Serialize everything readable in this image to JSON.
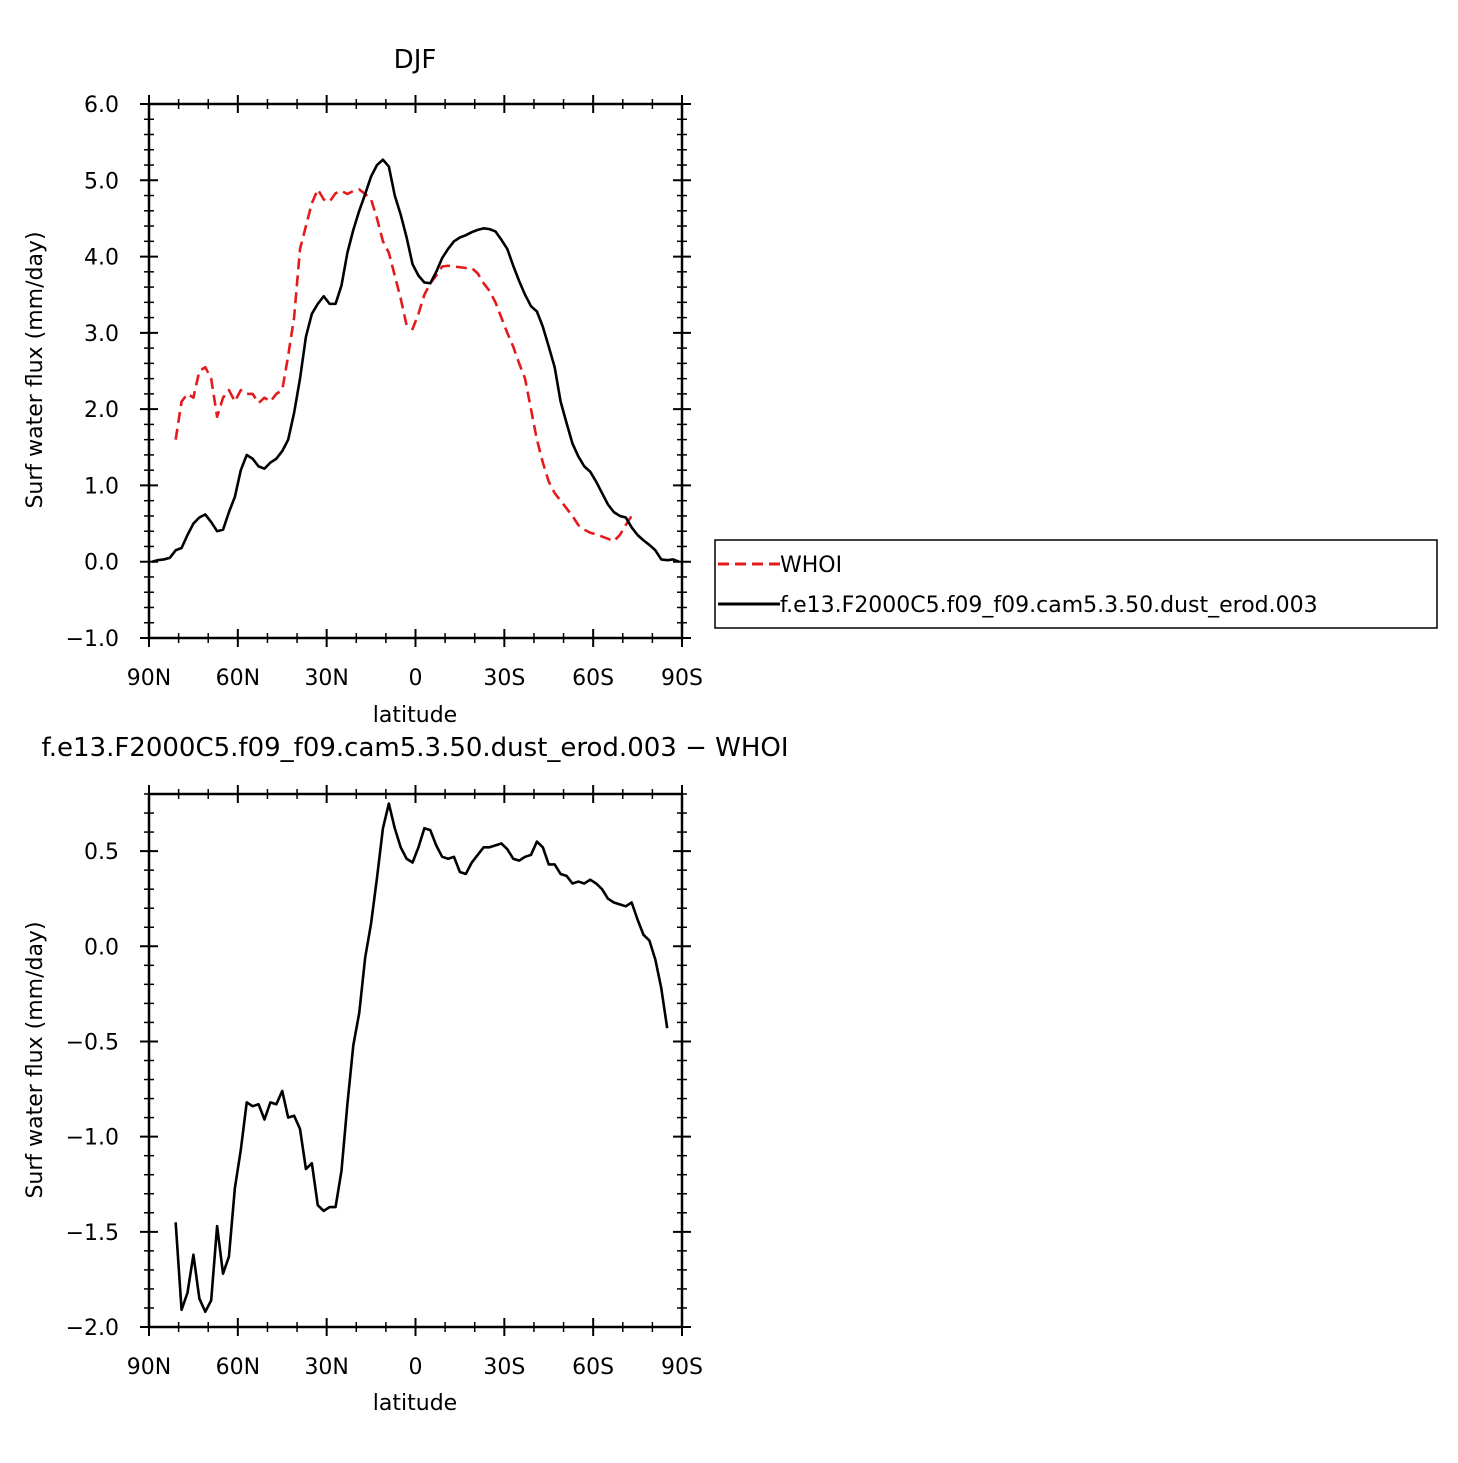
{
  "chart_data": [
    {
      "type": "line",
      "title": "DJF",
      "xlabel": "latitude",
      "ylabel": "Surf water flux (mm/day)",
      "xlim": [
        90,
        -90
      ],
      "ylim": [
        -1.0,
        6.0
      ],
      "xticks": [
        {
          "value": 90,
          "label": "90N"
        },
        {
          "value": 60,
          "label": "60N"
        },
        {
          "value": 30,
          "label": "30N"
        },
        {
          "value": 0,
          "label": "0"
        },
        {
          "value": -30,
          "label": "30S"
        },
        {
          "value": -60,
          "label": "60S"
        },
        {
          "value": -90,
          "label": "90S"
        }
      ],
      "yticks": [
        {
          "value": 6,
          "label": "6.0"
        },
        {
          "value": 5,
          "label": "5.0"
        },
        {
          "value": 4,
          "label": "4.0"
        },
        {
          "value": 3,
          "label": "3.0"
        },
        {
          "value": 2,
          "label": "2.0"
        },
        {
          "value": 1,
          "label": "1.0"
        },
        {
          "value": 0,
          "label": "0.0"
        },
        {
          "value": -1,
          "label": "−1.0"
        }
      ],
      "legend": {
        "placement": "right"
      },
      "series": [
        {
          "name": "WHOI",
          "color": "#e41a1c",
          "dash": true,
          "points": [
            [
              81,
              1.6
            ],
            [
              79,
              2.1
            ],
            [
              77,
              2.2
            ],
            [
              75,
              2.15
            ],
            [
              73,
              2.5
            ],
            [
              71,
              2.55
            ],
            [
              69,
              2.4
            ],
            [
              67,
              1.9
            ],
            [
              65,
              2.15
            ],
            [
              63,
              2.25
            ],
            [
              61,
              2.1
            ],
            [
              59,
              2.25
            ],
            [
              57,
              2.2
            ],
            [
              55,
              2.2
            ],
            [
              53,
              2.08
            ],
            [
              51,
              2.15
            ],
            [
              49,
              2.1
            ],
            [
              47,
              2.2
            ],
            [
              45,
              2.25
            ],
            [
              43,
              2.7
            ],
            [
              41,
              3.2
            ],
            [
              39,
              4.1
            ],
            [
              37,
              4.4
            ],
            [
              35,
              4.7
            ],
            [
              33,
              4.88
            ],
            [
              31,
              4.75
            ],
            [
              29,
              4.72
            ],
            [
              27,
              4.83
            ],
            [
              25,
              4.86
            ],
            [
              23,
              4.82
            ],
            [
              21,
              4.86
            ],
            [
              19,
              4.88
            ],
            [
              17,
              4.82
            ],
            [
              15,
              4.75
            ],
            [
              13,
              4.5
            ],
            [
              11,
              4.2
            ],
            [
              9,
              4.05
            ],
            [
              7,
              3.75
            ],
            [
              5,
              3.45
            ],
            [
              3,
              3.1
            ],
            [
              1,
              3.05
            ],
            [
              -1,
              3.25
            ],
            [
              -3,
              3.5
            ],
            [
              -5,
              3.65
            ],
            [
              -7,
              3.75
            ],
            [
              -9,
              3.87
            ],
            [
              -11,
              3.88
            ],
            [
              -13,
              3.87
            ],
            [
              -15,
              3.86
            ],
            [
              -17,
              3.85
            ],
            [
              -19,
              3.85
            ],
            [
              -21,
              3.78
            ],
            [
              -23,
              3.65
            ],
            [
              -25,
              3.55
            ],
            [
              -27,
              3.4
            ],
            [
              -29,
              3.2
            ],
            [
              -31,
              3.0
            ],
            [
              -33,
              2.82
            ],
            [
              -35,
              2.6
            ],
            [
              -37,
              2.4
            ],
            [
              -39,
              2.0
            ],
            [
              -41,
              1.6
            ],
            [
              -43,
              1.3
            ],
            [
              -45,
              1.05
            ],
            [
              -47,
              0.9
            ],
            [
              -49,
              0.8
            ],
            [
              -51,
              0.7
            ],
            [
              -53,
              0.6
            ],
            [
              -55,
              0.48
            ],
            [
              -57,
              0.42
            ],
            [
              -59,
              0.38
            ],
            [
              -61,
              0.36
            ],
            [
              -63,
              0.33
            ],
            [
              -65,
              0.3
            ],
            [
              -67,
              0.27
            ],
            [
              -69,
              0.35
            ],
            [
              -71,
              0.48
            ],
            [
              -73,
              0.6
            ]
          ]
        },
        {
          "name": "f.e13.F2000C5.f09_f09.cam5.3.50.dust_erod.003",
          "color": "#000000",
          "dash": false,
          "points": [
            [
              89,
              0.0
            ],
            [
              87,
              0.02
            ],
            [
              85,
              0.03
            ],
            [
              83,
              0.05
            ],
            [
              81,
              0.15
            ],
            [
              79,
              0.18
            ],
            [
              77,
              0.35
            ],
            [
              75,
              0.5
            ],
            [
              73,
              0.58
            ],
            [
              71,
              0.62
            ],
            [
              69,
              0.52
            ],
            [
              67,
              0.4
            ],
            [
              65,
              0.42
            ],
            [
              63,
              0.65
            ],
            [
              61,
              0.85
            ],
            [
              59,
              1.2
            ],
            [
              57,
              1.4
            ],
            [
              55,
              1.35
            ],
            [
              53,
              1.25
            ],
            [
              51,
              1.22
            ],
            [
              49,
              1.3
            ],
            [
              47,
              1.35
            ],
            [
              45,
              1.45
            ],
            [
              43,
              1.6
            ],
            [
              41,
              1.95
            ],
            [
              39,
              2.4
            ],
            [
              37,
              2.95
            ],
            [
              35,
              3.25
            ],
            [
              33,
              3.38
            ],
            [
              31,
              3.48
            ],
            [
              29,
              3.38
            ],
            [
              27,
              3.38
            ],
            [
              25,
              3.62
            ],
            [
              23,
              4.05
            ],
            [
              21,
              4.35
            ],
            [
              19,
              4.6
            ],
            [
              17,
              4.82
            ],
            [
              15,
              5.05
            ],
            [
              13,
              5.2
            ],
            [
              11,
              5.27
            ],
            [
              9,
              5.18
            ],
            [
              7,
              4.8
            ],
            [
              5,
              4.55
            ],
            [
              3,
              4.25
            ],
            [
              1,
              3.9
            ],
            [
              -1,
              3.75
            ],
            [
              -3,
              3.66
            ],
            [
              -5,
              3.65
            ],
            [
              -7,
              3.8
            ],
            [
              -9,
              3.98
            ],
            [
              -11,
              4.1
            ],
            [
              -13,
              4.2
            ],
            [
              -15,
              4.25
            ],
            [
              -17,
              4.28
            ],
            [
              -19,
              4.32
            ],
            [
              -21,
              4.35
            ],
            [
              -23,
              4.37
            ],
            [
              -25,
              4.36
            ],
            [
              -27,
              4.33
            ],
            [
              -29,
              4.22
            ],
            [
              -31,
              4.1
            ],
            [
              -33,
              3.88
            ],
            [
              -35,
              3.68
            ],
            [
              -37,
              3.5
            ],
            [
              -39,
              3.35
            ],
            [
              -41,
              3.28
            ],
            [
              -43,
              3.08
            ],
            [
              -45,
              2.82
            ],
            [
              -47,
              2.55
            ],
            [
              -49,
              2.1
            ],
            [
              -51,
              1.82
            ],
            [
              -53,
              1.55
            ],
            [
              -55,
              1.38
            ],
            [
              -57,
              1.25
            ],
            [
              -59,
              1.18
            ],
            [
              -61,
              1.05
            ],
            [
              -63,
              0.9
            ],
            [
              -65,
              0.75
            ],
            [
              -67,
              0.65
            ],
            [
              -69,
              0.6
            ],
            [
              -71,
              0.58
            ],
            [
              -73,
              0.45
            ],
            [
              -75,
              0.35
            ],
            [
              -77,
              0.28
            ],
            [
              -79,
              0.22
            ],
            [
              -81,
              0.15
            ],
            [
              -83,
              0.03
            ],
            [
              -85,
              0.02
            ],
            [
              -87,
              0.03
            ],
            [
              -89,
              0.0
            ]
          ]
        }
      ]
    },
    {
      "type": "line",
      "title": "f.e13.F2000C5.f09_f09.cam5.3.50.dust_erod.003 − WHOI",
      "xlabel": "latitude",
      "ylabel": "Surf water flux (mm/day)",
      "xlim": [
        90,
        -90
      ],
      "ylim": [
        -2.0,
        0.8
      ],
      "xticks": [
        {
          "value": 90,
          "label": "90N"
        },
        {
          "value": 60,
          "label": "60N"
        },
        {
          "value": 30,
          "label": "30N"
        },
        {
          "value": 0,
          "label": "0"
        },
        {
          "value": -30,
          "label": "30S"
        },
        {
          "value": -60,
          "label": "60S"
        },
        {
          "value": -90,
          "label": "90S"
        }
      ],
      "yticks": [
        {
          "value": 0.5,
          "label": "0.5"
        },
        {
          "value": 0.0,
          "label": "0.0"
        },
        {
          "value": -0.5,
          "label": "−0.5"
        },
        {
          "value": -1.0,
          "label": "−1.0"
        },
        {
          "value": -1.5,
          "label": "−1.5"
        },
        {
          "value": -2.0,
          "label": "−2.0"
        }
      ],
      "series": [
        {
          "color": "#000000",
          "dash": false,
          "points": [
            [
              81,
              -1.45
            ],
            [
              79,
              -1.91
            ],
            [
              77,
              -1.82
            ],
            [
              75,
              -1.62
            ],
            [
              73,
              -1.85
            ],
            [
              71,
              -1.92
            ],
            [
              69,
              -1.86
            ],
            [
              67,
              -1.47
            ],
            [
              65,
              -1.72
            ],
            [
              63,
              -1.63
            ],
            [
              61,
              -1.27
            ],
            [
              59,
              -1.07
            ],
            [
              57,
              -0.82
            ],
            [
              55,
              -0.84
            ],
            [
              53,
              -0.83
            ],
            [
              51,
              -0.91
            ],
            [
              49,
              -0.82
            ],
            [
              47,
              -0.83
            ],
            [
              45,
              -0.76
            ],
            [
              43,
              -0.9
            ],
            [
              41,
              -0.89
            ],
            [
              39,
              -0.96
            ],
            [
              37,
              -1.17
            ],
            [
              35,
              -1.14
            ],
            [
              33,
              -1.36
            ],
            [
              31,
              -1.39
            ],
            [
              29,
              -1.37
            ],
            [
              27,
              -1.37
            ],
            [
              25,
              -1.18
            ],
            [
              23,
              -0.83
            ],
            [
              21,
              -0.52
            ],
            [
              19,
              -0.35
            ],
            [
              17,
              -0.06
            ],
            [
              15,
              0.12
            ],
            [
              13,
              0.36
            ],
            [
              11,
              0.62
            ],
            [
              9,
              0.75
            ],
            [
              7,
              0.62
            ],
            [
              5,
              0.52
            ],
            [
              3,
              0.46
            ],
            [
              1,
              0.44
            ],
            [
              -1,
              0.52
            ],
            [
              -3,
              0.62
            ],
            [
              -5,
              0.61
            ],
            [
              -7,
              0.53
            ],
            [
              -9,
              0.47
            ],
            [
              -11,
              0.46
            ],
            [
              -13,
              0.47
            ],
            [
              -15,
              0.39
            ],
            [
              -17,
              0.38
            ],
            [
              -19,
              0.44
            ],
            [
              -21,
              0.48
            ],
            [
              -23,
              0.52
            ],
            [
              -25,
              0.52
            ],
            [
              -27,
              0.53
            ],
            [
              -29,
              0.54
            ],
            [
              -31,
              0.51
            ],
            [
              -33,
              0.46
            ],
            [
              -35,
              0.45
            ],
            [
              -37,
              0.47
            ],
            [
              -39,
              0.48
            ],
            [
              -41,
              0.55
            ],
            [
              -43,
              0.52
            ],
            [
              -45,
              0.43
            ],
            [
              -47,
              0.43
            ],
            [
              -49,
              0.38
            ],
            [
              -51,
              0.37
            ],
            [
              -53,
              0.33
            ],
            [
              -55,
              0.34
            ],
            [
              -57,
              0.33
            ],
            [
              -59,
              0.35
            ],
            [
              -61,
              0.33
            ],
            [
              -63,
              0.3
            ],
            [
              -65,
              0.25
            ],
            [
              -67,
              0.23
            ],
            [
              -69,
              0.22
            ],
            [
              -71,
              0.21
            ],
            [
              -73,
              0.23
            ],
            [
              -75,
              0.14
            ],
            [
              -77,
              0.06
            ],
            [
              -79,
              0.03
            ],
            [
              -81,
              -0.07
            ],
            [
              -83,
              -0.22
            ],
            [
              -85,
              -0.43
            ]
          ]
        }
      ]
    }
  ]
}
